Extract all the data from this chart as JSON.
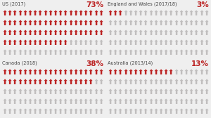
{
  "panels": [
    {
      "title": "US (2017)",
      "pct": 73,
      "pct_label": "73%"
    },
    {
      "title": "England and Wales (2017/18)",
      "pct": 3,
      "pct_label": "3%"
    },
    {
      "title": "Canada (2018)",
      "pct": 38,
      "pct_label": "38%"
    },
    {
      "title": "Australia (2013/14)",
      "pct": 13,
      "pct_label": "13%"
    }
  ],
  "cols": 20,
  "rows": 5,
  "red_color": "#bb2222",
  "gray_color": "#c0bebe",
  "bg_color": "#efefef",
  "title_color": "#444444",
  "pct_color": "#bb2222",
  "title_fontsize": 4.8,
  "pct_fontsize": 7.5,
  "icon_fontsize": 7.0,
  "icon_char": "⬆"
}
